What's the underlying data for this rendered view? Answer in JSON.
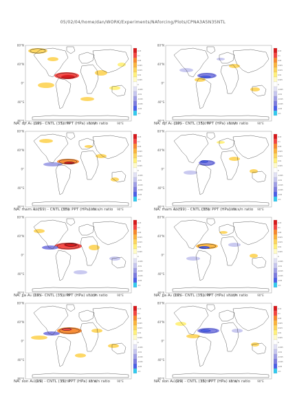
{
  "page": {
    "title": "05/02/04/home/dan/WORK/Experiments/NAforcing/Plots/CPNA3A5N35NTL"
  },
  "axes": {
    "lat_ticks": [
      "80°N",
      "40°N",
      "0°",
      "40°S",
      "80°S"
    ],
    "lon_ticks": [
      "150°E",
      "110°W",
      "10°W",
      "90°E"
    ]
  },
  "colorbar": {
    "labels": [
      "0.13",
      "0.1",
      "0.05",
      "0.025",
      "0.015",
      "0.01",
      "0.005",
      "0",
      "-0.005",
      "-0.01",
      "-0.015",
      "-0.025",
      "-0.05",
      "-0.1"
    ],
    "colors": [
      "#d7191c",
      "#f4433f",
      "#f8872c",
      "#fbb33b",
      "#fdd55c",
      "#fff07a",
      "#fffbc7",
      "#ffffff",
      "#e2e2f5",
      "#c6c6ef",
      "#9e9ee6",
      "#7b7be0",
      "#4a5ee8",
      "#33c9ee"
    ]
  },
  "chart_data": [
    {
      "type": "heatmap",
      "season": "djf",
      "component": "total",
      "caption": "NA: djf A₀ (19) - CNTL (35): PPT (HPa) sh:s/n ratio"
    },
    {
      "type": "heatmap",
      "season": "djf",
      "component": "reduced",
      "caption": "NA: djf A₀ (19) - CNTL (35): PPT (HPa) sh:s/n ratio"
    },
    {
      "type": "heatmap",
      "season": "mam",
      "component": "total",
      "caption": "NA: mam A₀ (19) - CNTL (35): PPT (HPa) sh:s/n ratio"
    },
    {
      "type": "heatmap",
      "season": "mam",
      "component": "reduced",
      "caption": "NA: mam A₀ (19) - CNTL (35): PPT (HPa) sh:s/n ratio"
    },
    {
      "type": "heatmap",
      "season": "jja",
      "component": "total",
      "caption": "NA: jja A₀ (19) - CNTL (35): PPT (HPa) sh:s/n ratio"
    },
    {
      "type": "heatmap",
      "season": "jja",
      "component": "reduced",
      "caption": "NA: jja A₀ (19) - CNTL (35): PPT (HPa) sh:s/n ratio"
    },
    {
      "type": "heatmap",
      "season": "son",
      "component": "total",
      "caption": "NA: son A₀ (19) - CNTL (35): PPT (HPa) sh:s/n ratio"
    },
    {
      "type": "heatmap",
      "season": "son",
      "component": "reduced",
      "caption": "NA: son A₀ (19) - CNTL (35): PPT (HPa) sh:s/n ratio"
    }
  ]
}
